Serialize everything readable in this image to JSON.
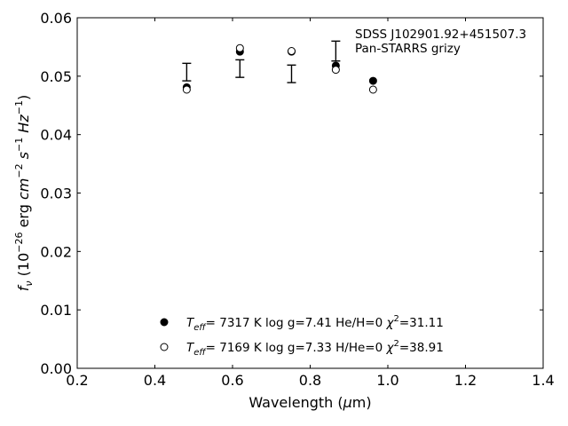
{
  "chart_data": {
    "type": "scatter",
    "xlabel": "Wavelength (μm)",
    "ylabel": "f_ν (10^-26 erg cm^-2 s^-1 Hz^-1)",
    "xlim": [
      0.2,
      1.4
    ],
    "ylim": [
      0.0,
      0.06
    ],
    "xticks": [
      0.2,
      0.4,
      0.6,
      0.8,
      1.0,
      1.2,
      1.4
    ],
    "xtick_labels": [
      "0.2",
      "0.4",
      "0.6",
      "0.8",
      "1.0",
      "1.2",
      "1.4"
    ],
    "yticks": [
      0.0,
      0.01,
      0.02,
      0.03,
      0.04,
      0.05,
      0.06
    ],
    "ytick_labels": [
      "0.00",
      "0.01",
      "0.02",
      "0.03",
      "0.04",
      "0.05",
      "0.06"
    ],
    "grid": false,
    "annotation": [
      "SDSS J102901.92+451507.3",
      "Pan-STARRS grizy"
    ],
    "observed": {
      "x": [
        0.482,
        0.619,
        0.752,
        0.866,
        null
      ],
      "y": [
        0.0507,
        0.0513,
        0.0504,
        0.0543,
        null
      ],
      "yerr": [
        0.0015,
        0.0015,
        0.0015,
        0.0017,
        null
      ]
    },
    "series": [
      {
        "marker": "filled-circle",
        "x": [
          0.482,
          0.619,
          0.752,
          0.866,
          0.962
        ],
        "y": [
          0.0481,
          0.0542,
          0.0542,
          0.0518,
          0.0492
        ]
      },
      {
        "marker": "open-circle",
        "x": [
          0.482,
          0.619,
          0.752,
          0.866,
          0.962
        ],
        "y": [
          0.0477,
          0.0548,
          0.0543,
          0.0511,
          0.0477
        ]
      }
    ],
    "legend": [
      {
        "marker": "filled-circle",
        "teff_symbol": "T",
        "teff_sub": "eff",
        "teff": "=  7317 K",
        "params": "log g=7.41  He/H=0",
        "chi_symbol": "χ",
        "chi_sup": "2",
        "chi": "=31.11"
      },
      {
        "marker": "open-circle",
        "teff_symbol": "T",
        "teff_sub": "eff",
        "teff": "=  7169 K",
        "params": "log g=7.33  H/He=0",
        "chi_symbol": "χ",
        "chi_sup": "2",
        "chi": "=38.91"
      }
    ],
    "legend_position": "bottom-center"
  }
}
